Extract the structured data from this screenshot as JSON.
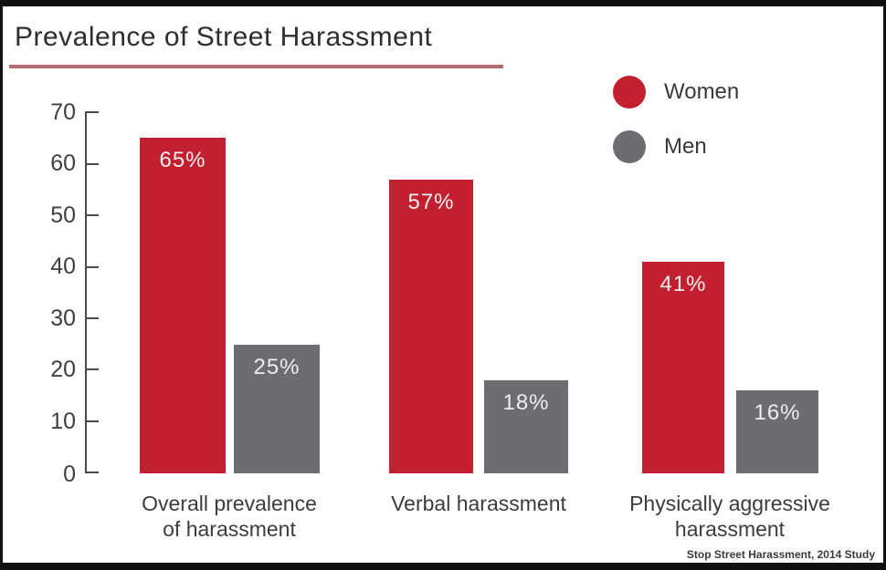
{
  "header": {
    "title": "Prevalence of Street Harassment"
  },
  "legend": {
    "items": [
      {
        "label": "Women",
        "color": "#c22031"
      },
      {
        "label": "Men",
        "color": "#6b6d70"
      }
    ]
  },
  "axis": {
    "yticks": [
      "70",
      "60",
      "50",
      "40",
      "30",
      "20",
      "10",
      "0"
    ],
    "categories": [
      "Overall prevalence\nof harassment",
      "Verbal harassment",
      "Physically aggressive\nharassment"
    ]
  },
  "footer": {
    "attribution": "Stop Street Harassment, 2014 Study"
  },
  "chart_data": {
    "type": "bar",
    "title": "Prevalence of Street Harassment",
    "categories": [
      "Overall prevalence of harassment",
      "Verbal harassment",
      "Physically aggressive harassment"
    ],
    "series": [
      {
        "name": "Women",
        "color": "#c22031",
        "values": [
          65,
          57,
          41
        ],
        "labels": [
          "65%",
          "57%",
          "41%"
        ]
      },
      {
        "name": "Men",
        "color": "#6b6d70",
        "values": [
          25,
          18,
          16
        ],
        "labels": [
          "25%",
          "18%",
          "16%"
        ]
      }
    ],
    "xlabel": "",
    "ylabel": "",
    "ylim": [
      0,
      70
    ],
    "yticks": [
      0,
      10,
      20,
      30,
      40,
      50,
      60,
      70
    ],
    "grid": false,
    "legend_position": "top-right",
    "value_suffix": "%",
    "source": "Stop Street Harassment, 2014 Study"
  }
}
